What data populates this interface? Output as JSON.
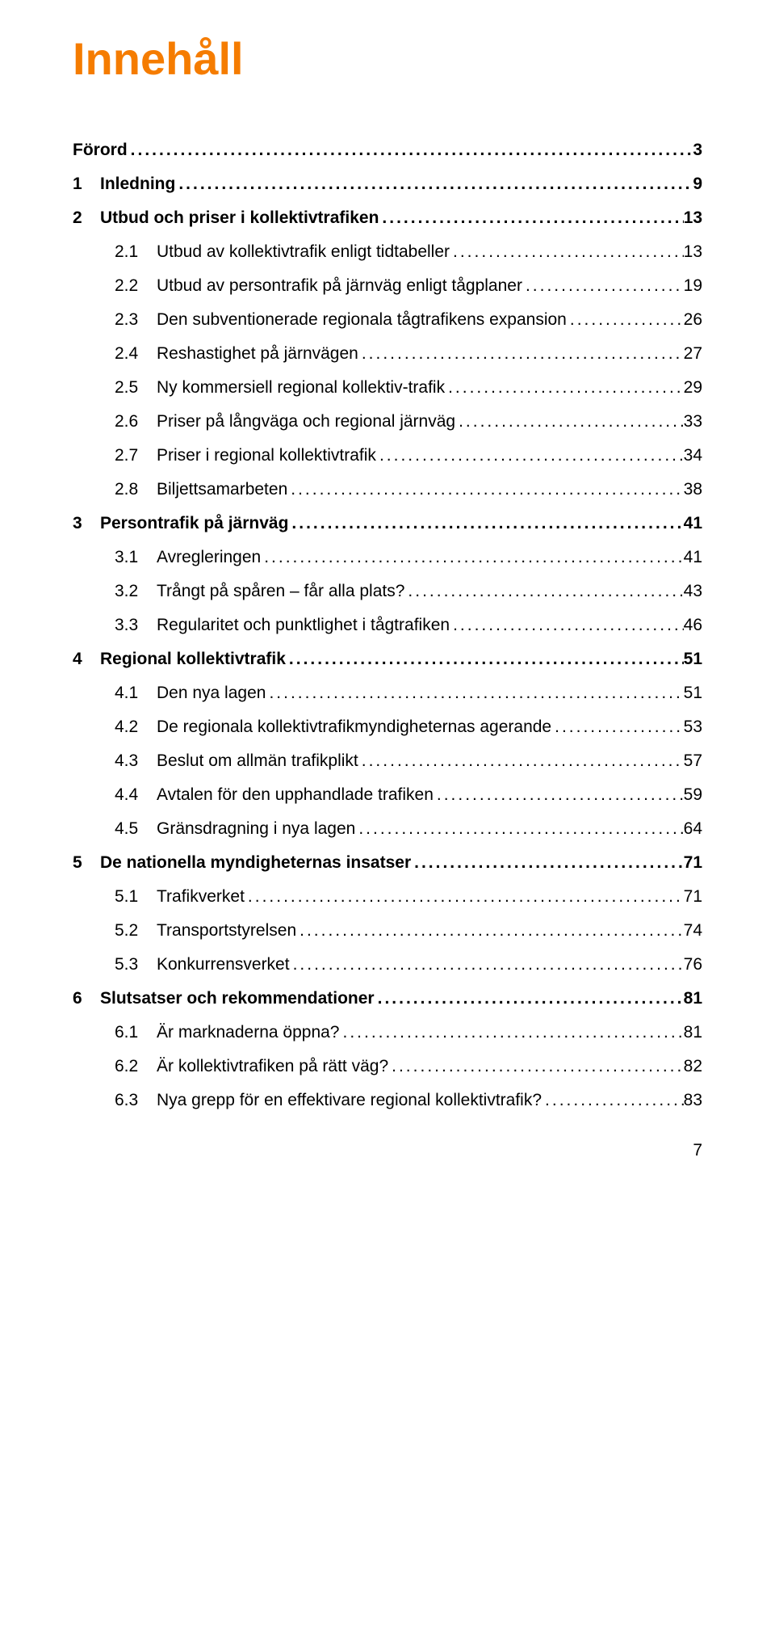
{
  "title": "Innehåll",
  "title_color": "#f57c00",
  "page_number": "7",
  "toc": [
    {
      "level": 0,
      "bold": true,
      "num": "",
      "text": "Förord",
      "page": "3"
    },
    {
      "level": 1,
      "bold": true,
      "num": "1",
      "text": "Inledning",
      "page": "9"
    },
    {
      "level": 1,
      "bold": true,
      "num": "2",
      "text": "Utbud och priser i kollektivtrafiken",
      "page": "13"
    },
    {
      "level": 2,
      "bold": false,
      "num": "2.1",
      "text": "Utbud av kollektivtrafik enligt tidtabeller",
      "page": "13"
    },
    {
      "level": 2,
      "bold": false,
      "num": "2.2",
      "text": "Utbud av persontrafik på järnväg enligt tågplaner",
      "page": "19"
    },
    {
      "level": 2,
      "bold": false,
      "num": "2.3",
      "text": "Den subventionerade regionala tågtrafikens expansion",
      "page": "26"
    },
    {
      "level": 2,
      "bold": false,
      "num": "2.4",
      "text": "Reshastighet på järnvägen",
      "page": "27"
    },
    {
      "level": 2,
      "bold": false,
      "num": "2.5",
      "text": "Ny kommersiell regional kollektiv-trafik",
      "page": "29"
    },
    {
      "level": 2,
      "bold": false,
      "num": "2.6",
      "text": "Priser på långväga och regional järnväg",
      "page": "33"
    },
    {
      "level": 2,
      "bold": false,
      "num": "2.7",
      "text": "Priser i regional kollektivtrafik",
      "page": "34"
    },
    {
      "level": 2,
      "bold": false,
      "num": "2.8",
      "text": "Biljettsamarbeten",
      "page": "38"
    },
    {
      "level": 1,
      "bold": true,
      "num": "3",
      "text": "Persontrafik på järnväg",
      "page": "41"
    },
    {
      "level": 2,
      "bold": false,
      "num": "3.1",
      "text": "Avregleringen",
      "page": "41"
    },
    {
      "level": 2,
      "bold": false,
      "num": "3.2",
      "text": "Trångt på spåren – får alla plats?",
      "page": "43"
    },
    {
      "level": 2,
      "bold": false,
      "num": "3.3",
      "text": "Regularitet och punktlighet i tågtrafiken",
      "page": "46"
    },
    {
      "level": 1,
      "bold": true,
      "num": "4",
      "text": "Regional kollektivtrafik",
      "page": "51"
    },
    {
      "level": 2,
      "bold": false,
      "num": "4.1",
      "text": "Den nya lagen",
      "page": "51"
    },
    {
      "level": 2,
      "bold": false,
      "num": "4.2",
      "text": "De regionala kollektivtrafikmyndigheternas agerande",
      "page": "53"
    },
    {
      "level": 2,
      "bold": false,
      "num": "4.3",
      "text": "Beslut om allmän trafikplikt",
      "page": "57"
    },
    {
      "level": 2,
      "bold": false,
      "num": "4.4",
      "text": "Avtalen för den upphandlade trafiken",
      "page": "59"
    },
    {
      "level": 2,
      "bold": false,
      "num": "4.5",
      "text": "Gränsdragning i nya lagen",
      "page": "64"
    },
    {
      "level": 1,
      "bold": true,
      "num": "5",
      "text": "De nationella myndigheternas insatser",
      "page": "71"
    },
    {
      "level": 2,
      "bold": false,
      "num": "5.1",
      "text": "Trafikverket",
      "page": "71"
    },
    {
      "level": 2,
      "bold": false,
      "num": "5.2",
      "text": "Transportstyrelsen",
      "page": "74"
    },
    {
      "level": 2,
      "bold": false,
      "num": "5.3",
      "text": "Konkurrensverket",
      "page": "76"
    },
    {
      "level": 1,
      "bold": true,
      "num": "6",
      "text": "Slutsatser och rekommendationer",
      "page": "81"
    },
    {
      "level": 2,
      "bold": false,
      "num": "6.1",
      "text": "Är marknaderna öppna?",
      "page": "81"
    },
    {
      "level": 2,
      "bold": false,
      "num": "6.2",
      "text": "Är kollektivtrafiken på rätt väg?",
      "page": "82"
    },
    {
      "level": 2,
      "bold": false,
      "num": "6.3",
      "text": "Nya grepp för en effektivare regional kollektivtrafik?",
      "page": "83"
    }
  ]
}
